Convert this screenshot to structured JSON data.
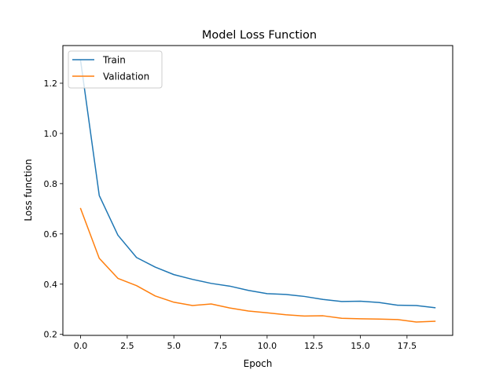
{
  "chart_data": {
    "type": "line",
    "title": "Model Loss Function",
    "xlabel": "Epoch",
    "ylabel": "Loss function",
    "xlim": [
      -0.95,
      19.95
    ],
    "ylim": [
      0.196,
      1.35
    ],
    "grid": false,
    "legend_position": "top-left",
    "x_ticks": [
      0,
      2.5,
      5,
      7.5,
      10,
      12.5,
      15,
      17.5
    ],
    "x_tick_labels": [
      "0.0",
      "2.5",
      "5.0",
      "7.5",
      "10.0",
      "12.5",
      "15.0",
      "17.5"
    ],
    "y_ticks": [
      0.2,
      0.4,
      0.6,
      0.8,
      1.0,
      1.2
    ],
    "y_tick_labels": [
      "0.2",
      "0.4",
      "0.6",
      "0.8",
      "1.0",
      "1.2"
    ],
    "x": [
      0,
      1,
      2,
      3,
      4,
      5,
      6,
      7,
      8,
      9,
      10,
      11,
      12,
      13,
      14,
      15,
      16,
      17,
      18,
      19
    ],
    "series": [
      {
        "name": "Train",
        "color": "#1f77b4",
        "values": [
          1.29,
          0.753,
          0.595,
          0.506,
          0.468,
          0.438,
          0.419,
          0.403,
          0.392,
          0.375,
          0.362,
          0.359,
          0.351,
          0.339,
          0.331,
          0.332,
          0.327,
          0.316,
          0.315,
          0.306
        ]
      },
      {
        "name": "Validation",
        "color": "#ff7f0e",
        "values": [
          0.701,
          0.503,
          0.423,
          0.394,
          0.353,
          0.328,
          0.315,
          0.321,
          0.305,
          0.293,
          0.286,
          0.278,
          0.273,
          0.274,
          0.264,
          0.262,
          0.261,
          0.259,
          0.249,
          0.252
        ]
      }
    ]
  }
}
